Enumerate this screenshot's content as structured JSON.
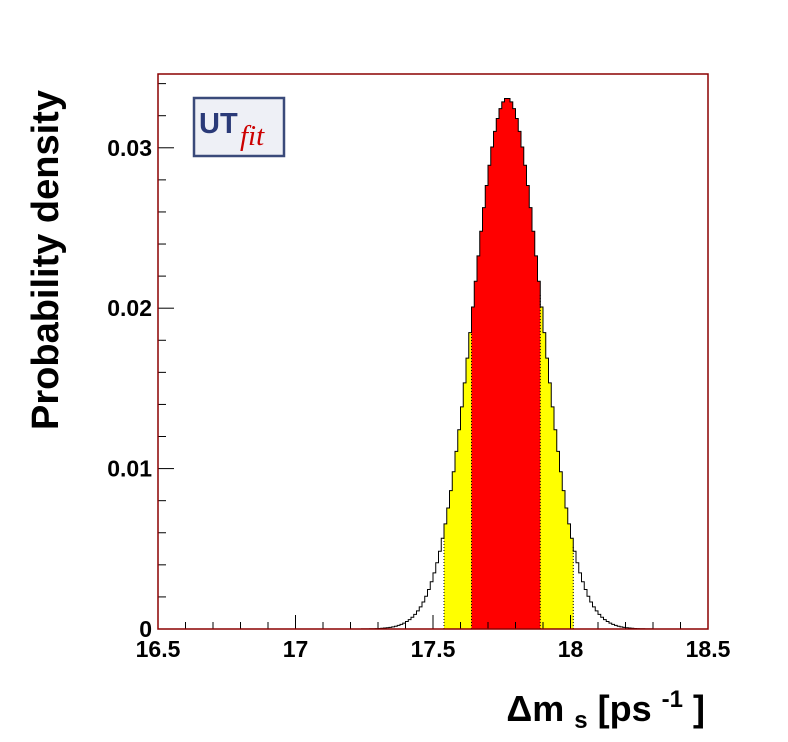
{
  "chart_data": {
    "type": "area",
    "xlabel": {
      "prefix": "Δm",
      "sub": "s",
      "mid": "[ps",
      "sup": "-1",
      "suffix": "]"
    },
    "ylabel": "Probability density",
    "xlim": [
      16.5,
      18.5
    ],
    "ylim": [
      0,
      0.0346
    ],
    "x_ticks": [
      16.5,
      17,
      17.5,
      18,
      18.5
    ],
    "x_tick_labels": [
      "16.5",
      "17",
      "17.5",
      "18",
      "18.5"
    ],
    "y_ticks": [
      0,
      0.01,
      0.02,
      0.03
    ],
    "y_tick_labels": [
      "0",
      "0.01",
      "0.02",
      "0.03"
    ],
    "distribution": {
      "peak_x": 17.77,
      "peak_y": 0.0331,
      "bin_width": 0.01
    },
    "intervals": {
      "inner_68": [
        17.64,
        17.89
      ],
      "outer_95": [
        17.54,
        18.01
      ]
    },
    "colors": {
      "inner": "#ff0000",
      "outer": "#ffff00",
      "frame": "#8b0000",
      "line": "#000000"
    },
    "grid": false,
    "logo": {
      "text_main": "UT",
      "text_script": "fit"
    }
  }
}
